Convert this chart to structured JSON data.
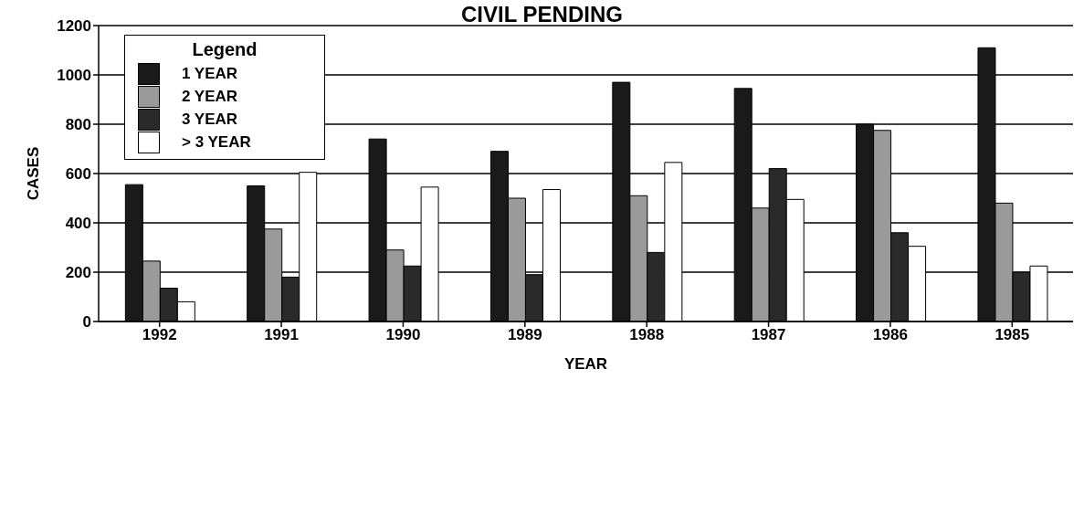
{
  "chart_data": {
    "type": "bar",
    "title": "CIVIL PENDING",
    "xlabel": "YEAR",
    "ylabel": "CASES",
    "legend_title": "Legend",
    "categories": [
      "1992",
      "1991",
      "1990",
      "1989",
      "1988",
      "1987",
      "1986",
      "1985"
    ],
    "series": [
      {
        "name": "1 YEAR",
        "color": "#1a1a1a",
        "values": [
          555,
          550,
          740,
          690,
          970,
          945,
          800,
          1110
        ]
      },
      {
        "name": "2 YEAR",
        "color": "#9a9a9a",
        "values": [
          245,
          375,
          290,
          500,
          510,
          460,
          775,
          480
        ]
      },
      {
        "name": "3 YEAR",
        "color": "#2a2a2a",
        "values": [
          135,
          180,
          225,
          190,
          280,
          620,
          360,
          200
        ]
      },
      {
        "name": "> 3 YEAR",
        "color": "#ffffff",
        "values": [
          80,
          605,
          545,
          535,
          645,
          495,
          305,
          225
        ]
      }
    ],
    "ylim": [
      0,
      1200
    ],
    "yticks": [
      0,
      200,
      400,
      600,
      800,
      1000,
      1200
    ],
    "grid": "y",
    "legend": "top left"
  }
}
